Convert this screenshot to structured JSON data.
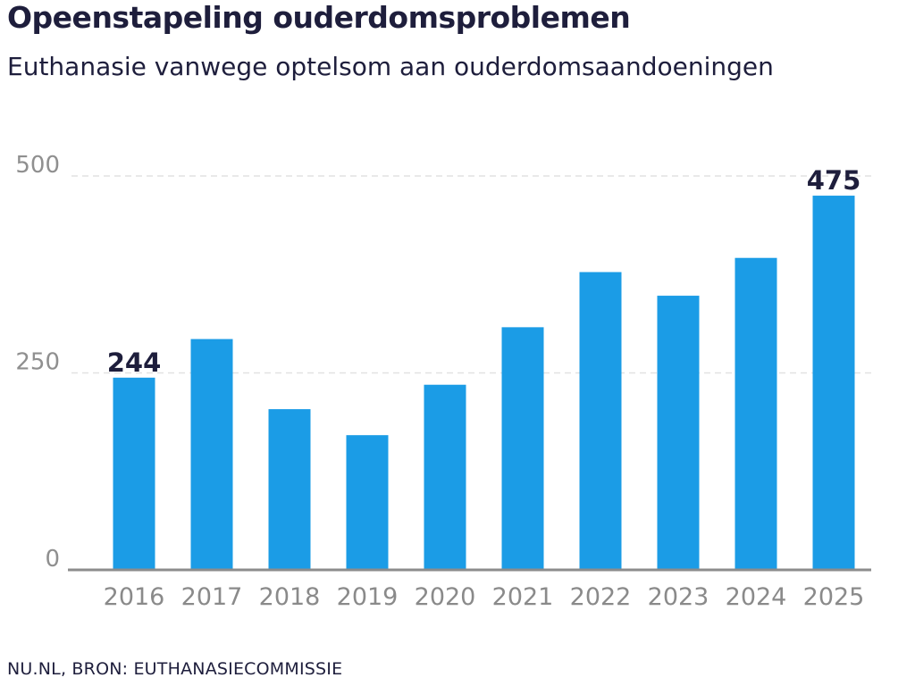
{
  "header": {
    "title": "Opeenstapeling ouderdomsproblemen",
    "subtitle": "Euthanasie vanwege optelsom aan ouderdomsaandoeningen"
  },
  "footer": {
    "source": "NU.NL, BRON: EUTHANASIECOMMISSIE"
  },
  "colors": {
    "bar": "#1b9ce6",
    "axis": "#8c8c8c",
    "grid": "#e2e2e2",
    "text": "#1e1e3c"
  },
  "chart_data": {
    "type": "bar",
    "title": "Opeenstapeling ouderdomsproblemen",
    "subtitle": "Euthanasie vanwege optelsom aan ouderdomsaandoeningen",
    "categories": [
      "2016",
      "2017",
      "2018",
      "2019",
      "2020",
      "2021",
      "2022",
      "2023",
      "2024",
      "2025"
    ],
    "values": [
      244,
      293,
      204,
      171,
      235,
      308,
      378,
      348,
      396,
      475
    ],
    "data_labels": [
      {
        "category": "2016",
        "text": "244"
      },
      {
        "category": "2025",
        "text": "475"
      }
    ],
    "yticks": [
      0,
      250,
      500
    ],
    "ylim": [
      0,
      500
    ],
    "xlabel": "",
    "ylabel": "",
    "grid": true,
    "legend": "none"
  }
}
